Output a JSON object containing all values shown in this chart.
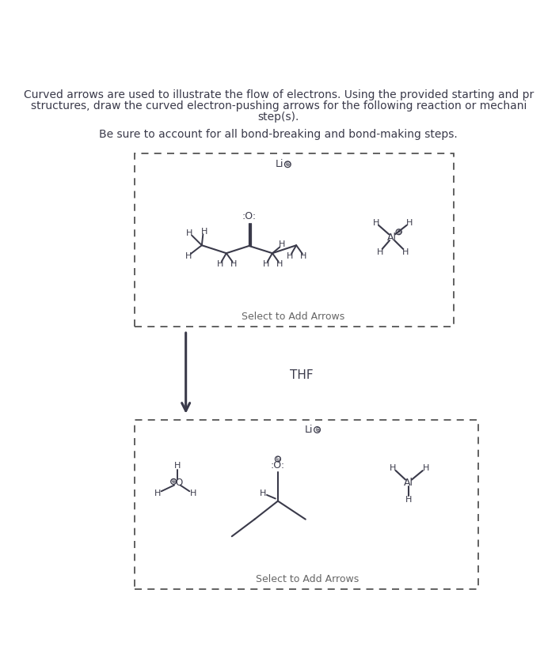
{
  "title_line1": "Curved arrows are used to illustrate the flow of electrons. Using the provided starting and pr",
  "title_line2": "structures, draw the curved electron-pushing arrows for the following reaction or mechani",
  "title_line3": "step(s).",
  "subtitle": "Be sure to account for all bond-breaking and bond-making steps.",
  "thf_label": "THF",
  "select_arrows": "Select to Add Arrows",
  "bg_color": "#ffffff",
  "box_color": "#555555",
  "line_color": "#3a3a4a"
}
